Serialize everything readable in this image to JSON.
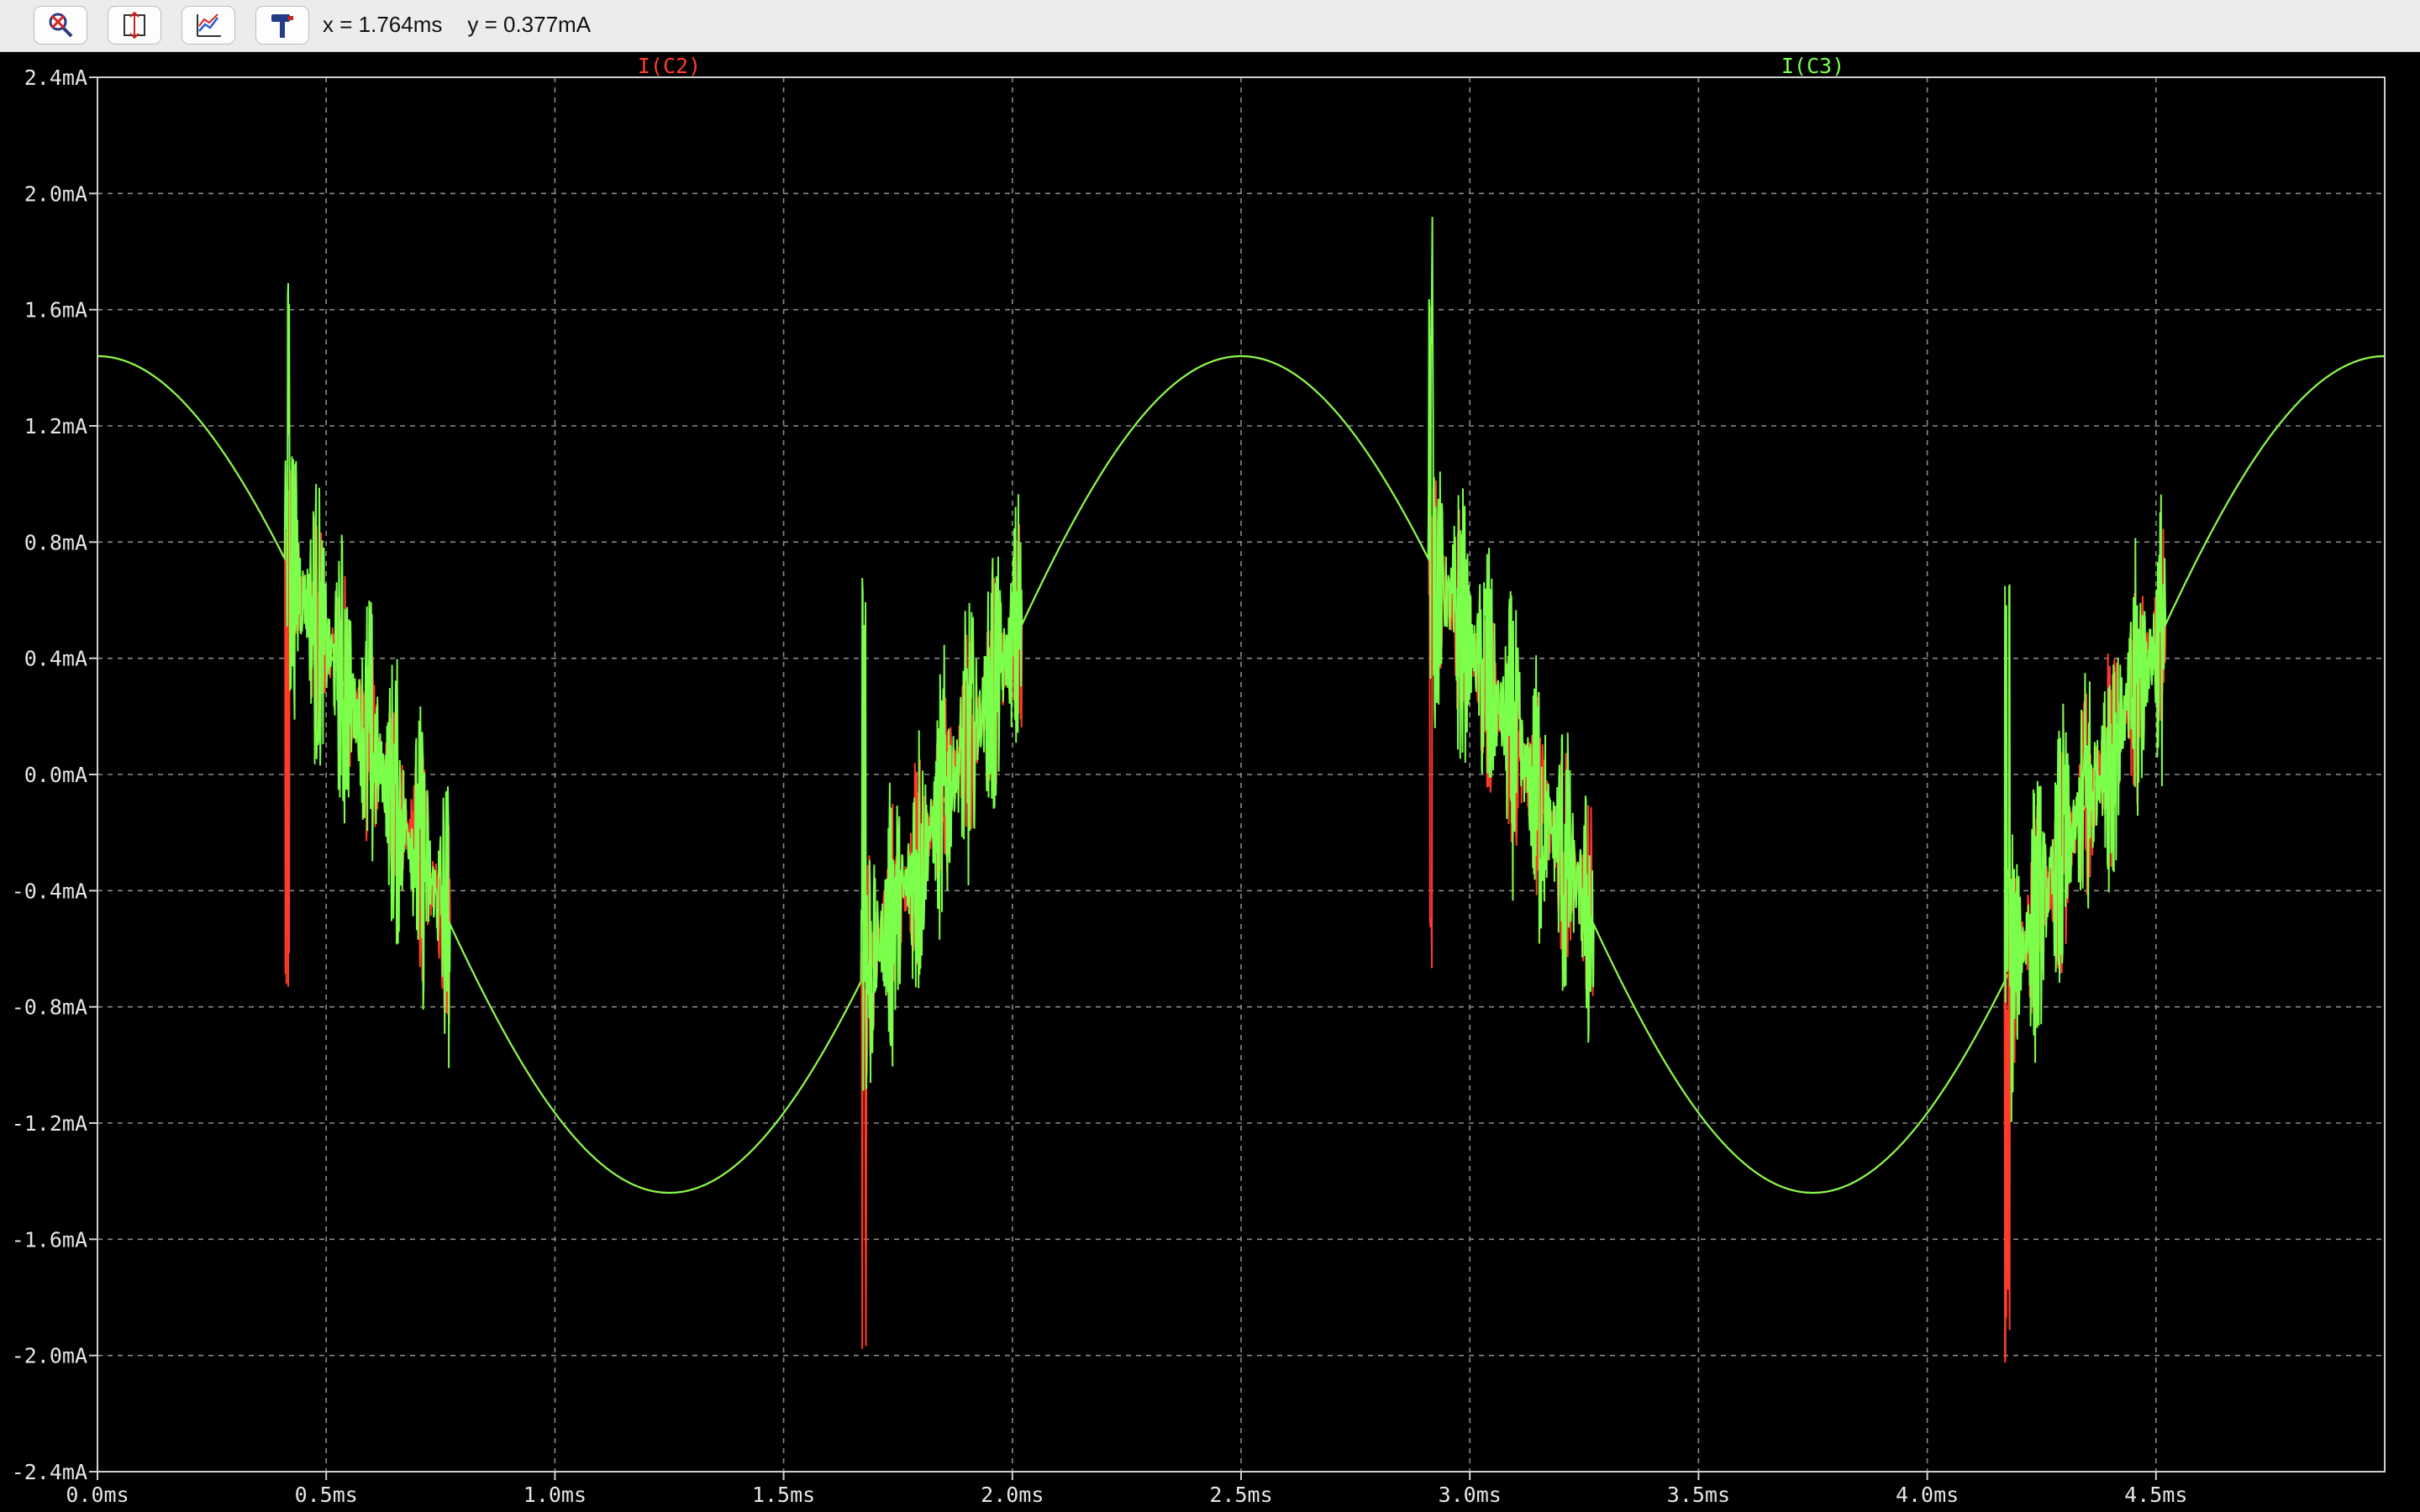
{
  "toolbar": {
    "buttons": [
      {
        "name": "autorange-button",
        "icon": "zoom-fit-icon"
      },
      {
        "name": "vertical-autorange-button",
        "icon": "vertical-range-icon"
      },
      {
        "name": "delete-trace-button",
        "icon": "trace-edit-icon"
      },
      {
        "name": "hammer-tool-button",
        "icon": "hammer-icon"
      }
    ],
    "cursor_x": "x = 1.764ms",
    "cursor_y": "y = 0.377mA"
  },
  "colors": {
    "background": "#000000",
    "grid": "#8a8a8a",
    "axis_text": "#e6e6e6",
    "trace_c2": "#ff3b2a",
    "trace_c3": "#7cff4a",
    "trace_sine": "#d6df3c"
  },
  "chart_data": {
    "type": "line",
    "title": "",
    "xlabel": "",
    "ylabel": "",
    "xlim": [
      0,
      5.0
    ],
    "ylim": [
      -2.4,
      2.4
    ],
    "x_unit": "ms",
    "y_unit": "mA",
    "grid": true,
    "legend_position": "top",
    "x_ticks": [
      "0.0ms",
      "0.5ms",
      "1.0ms",
      "1.5ms",
      "2.0ms",
      "2.5ms",
      "3.0ms",
      "3.5ms",
      "4.0ms",
      "4.5ms"
    ],
    "y_ticks": [
      "2.4mA",
      "2.0mA",
      "1.6mA",
      "1.2mA",
      "0.8mA",
      "0.4mA",
      "0.0mA",
      "-0.4mA",
      "-0.8mA",
      "-1.2mA",
      "-1.6mA",
      "-2.0mA",
      "-2.4mA"
    ],
    "series": [
      {
        "name": "I(C2)",
        "color": "#ff3b2a"
      },
      {
        "name": "I(C3)",
        "color": "#7cff4a"
      }
    ],
    "sine_envelope": {
      "amplitude": 1.44,
      "period": 2.5,
      "peak_at": 0.0
    },
    "noise_regions": [
      {
        "start": 0.41,
        "end": 0.77,
        "spike_c3": 2.11,
        "spike_c2": -0.76
      },
      {
        "start": 1.67,
        "end": 2.02,
        "spike_c3": 0.73,
        "spike_c2": -2.09
      },
      {
        "start": 2.91,
        "end": 3.27,
        "spike_c3": 2.05,
        "spike_c2": -0.7
      },
      {
        "start": 4.17,
        "end": 4.52,
        "spike_c3": 0.72,
        "spike_c2": -2.07
      }
    ]
  }
}
